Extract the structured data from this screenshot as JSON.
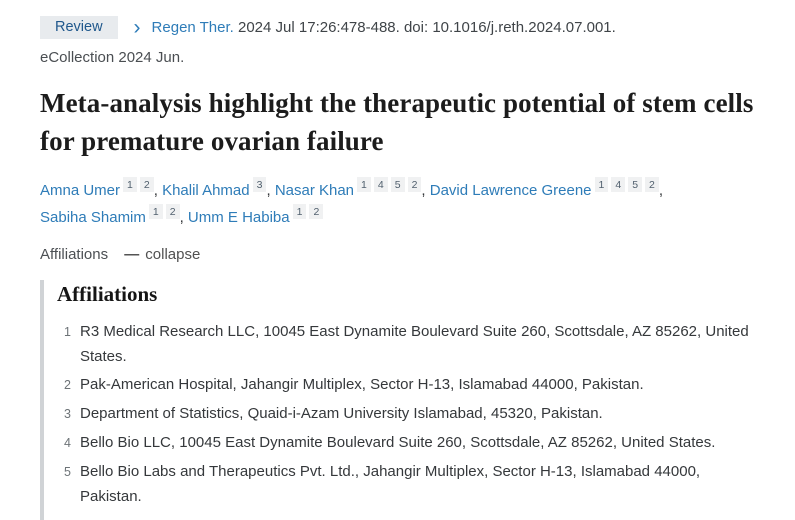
{
  "header": {
    "review_badge": "Review",
    "chevron": "›",
    "journal_link": "Regen Ther.",
    "citation_text": "2024 Jul 17:26:478-488. doi: 10.1016/j.reth.2024.07.001.",
    "ecollection_text": "eCollection 2024 Jun."
  },
  "title": "Meta-analysis highlight the therapeutic potential of stem cells for premature ovarian failure",
  "authors": {
    "separator": ",",
    "list": [
      {
        "name": "Amna Umer",
        "sups": [
          "1",
          "2"
        ]
      },
      {
        "name": "Khalil Ahmad",
        "sups": [
          "3"
        ]
      },
      {
        "name": "Nasar Khan",
        "sups": [
          "1",
          "4",
          "5",
          "2"
        ]
      },
      {
        "name": "David Lawrence Greene",
        "sups": [
          "1",
          "4",
          "5",
          "2"
        ]
      },
      {
        "name": "Sabiha Shamim",
        "sups": [
          "1",
          "2"
        ]
      },
      {
        "name": "Umm E Habiba",
        "sups": [
          "1",
          "2"
        ]
      }
    ]
  },
  "affiliations_toggle": {
    "label": "Affiliations",
    "collapse_icon": "—",
    "collapse_label": "collapse"
  },
  "affiliations": {
    "heading": "Affiliations",
    "items": [
      {
        "num": "1",
        "text": "R3 Medical Research LLC, 10045 East Dynamite Boulevard Suite 260, Scottsdale, AZ 85262, United States."
      },
      {
        "num": "2",
        "text": "Pak-American Hospital, Jahangir Multiplex, Sector H-13, Islamabad 44000, Pakistan."
      },
      {
        "num": "3",
        "text": "Department of Statistics, Quaid-i-Azam University Islamabad, 45320, Pakistan."
      },
      {
        "num": "4",
        "text": "Bello Bio LLC, 10045 East Dynamite Boulevard Suite 260, Scottsdale, AZ 85262, United States."
      },
      {
        "num": "5",
        "text": "Bello Bio Labs and Therapeutics Pvt. Ltd., Jahangir Multiplex, Sector H-13, Islamabad 44000, Pakistan."
      }
    ]
  },
  "colors": {
    "link_blue": "#2e7cb8",
    "badge_bg": "#e8ebee",
    "badge_text": "#20588c",
    "title_color": "#1c1c1c",
    "body_text": "#35383b",
    "sup_bg": "#f0f1f2",
    "sup_text": "#51606e",
    "panel_border": "#d0d3d6"
  }
}
